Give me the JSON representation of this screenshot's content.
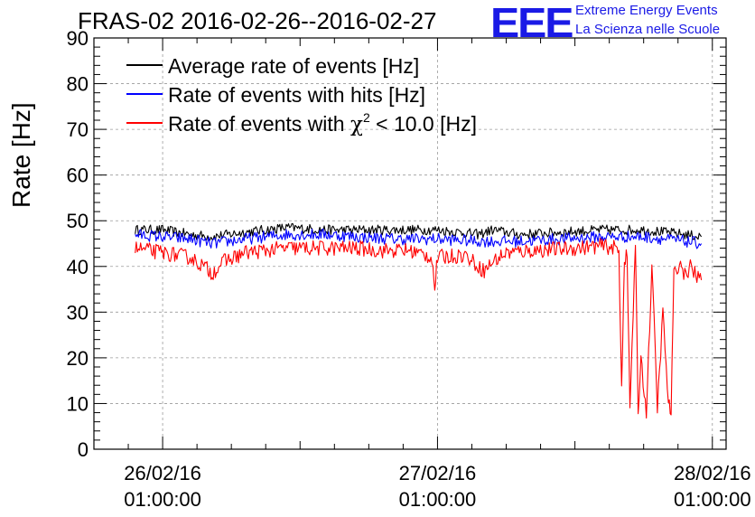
{
  "header": {
    "title": "FRAS-02 2016-02-26--2016-02-27",
    "logo_text": "EEE",
    "logo_line1": "Extreme Energy Events",
    "logo_line2": "La Scienza nelle Scuole"
  },
  "chart_data": {
    "type": "line",
    "title": "FRAS-02 2016-02-26--2016-02-27",
    "xlabel": "",
    "ylabel": "Rate [Hz]",
    "ylim": [
      0,
      90
    ],
    "xlim": [
      -0.25,
      2.05
    ],
    "y_ticks": [
      0,
      10,
      20,
      30,
      40,
      50,
      60,
      70,
      80,
      90
    ],
    "x_ticks": [
      {
        "x": 0,
        "label_date": "26/02/16",
        "label_time": "01:00:00"
      },
      {
        "x": 1,
        "label_date": "27/02/16",
        "label_time": "01:00:00"
      },
      {
        "x": 2,
        "label_date": "28/02/16",
        "label_time": "01:00:00"
      }
    ],
    "x_units": "days since 26/02/16 01:00:00",
    "grid": true,
    "legend_position": "top-left",
    "series": [
      {
        "name": "Average rate of events [Hz]",
        "color": "#000000",
        "x": [
          -0.1,
          0.0,
          0.1,
          0.18,
          0.3,
          0.45,
          0.6,
          0.7,
          0.85,
          1.0,
          1.15,
          1.2,
          1.3,
          1.45,
          1.6,
          1.75,
          1.9,
          1.96
        ],
        "y": [
          48,
          48,
          47,
          46.5,
          47.5,
          48.5,
          48,
          48,
          48,
          48,
          47,
          48,
          47,
          47.5,
          48,
          48,
          47,
          46.5
        ]
      },
      {
        "name": "Rate of events with hits [Hz]",
        "color": "#0000ff",
        "x": [
          -0.1,
          0.0,
          0.1,
          0.18,
          0.3,
          0.45,
          0.6,
          0.7,
          0.85,
          1.0,
          1.15,
          1.2,
          1.3,
          1.45,
          1.6,
          1.75,
          1.9,
          1.96
        ],
        "y": [
          47,
          46.5,
          46,
          45,
          46,
          47,
          47,
          46.5,
          46,
          46,
          45.5,
          45.5,
          45.5,
          46,
          46.5,
          46.5,
          45.5,
          45
        ]
      },
      {
        "name": "Rate of events with χ² < 10.0 [Hz]",
        "legend_main": "Rate of events with ",
        "legend_chi": "χ",
        "legend_sup": "2",
        "legend_tail": " < 10.0 [Hz]",
        "color": "#ff0000",
        "x": [
          -0.1,
          0.0,
          0.1,
          0.15,
          0.18,
          0.22,
          0.3,
          0.45,
          0.6,
          0.7,
          0.8,
          0.9,
          0.98,
          0.99,
          1.0,
          1.1,
          1.17,
          1.2,
          1.25,
          1.35,
          1.5,
          1.6,
          1.65,
          1.66,
          1.67,
          1.68,
          1.69,
          1.7,
          1.72,
          1.73,
          1.74,
          1.76,
          1.78,
          1.8,
          1.82,
          1.84,
          1.85,
          1.86,
          1.88,
          1.9,
          1.92,
          1.94,
          1.96
        ],
        "y": [
          44,
          43,
          42,
          40,
          38.5,
          41,
          43,
          44,
          44,
          44,
          43.5,
          43.5,
          42,
          35,
          42,
          42.5,
          39,
          41,
          43,
          43.5,
          44,
          44.5,
          44,
          43,
          14,
          42,
          42,
          9,
          44,
          8,
          20,
          8,
          40,
          9,
          30,
          10,
          8,
          38,
          41,
          38,
          40,
          38,
          37
        ]
      }
    ]
  }
}
